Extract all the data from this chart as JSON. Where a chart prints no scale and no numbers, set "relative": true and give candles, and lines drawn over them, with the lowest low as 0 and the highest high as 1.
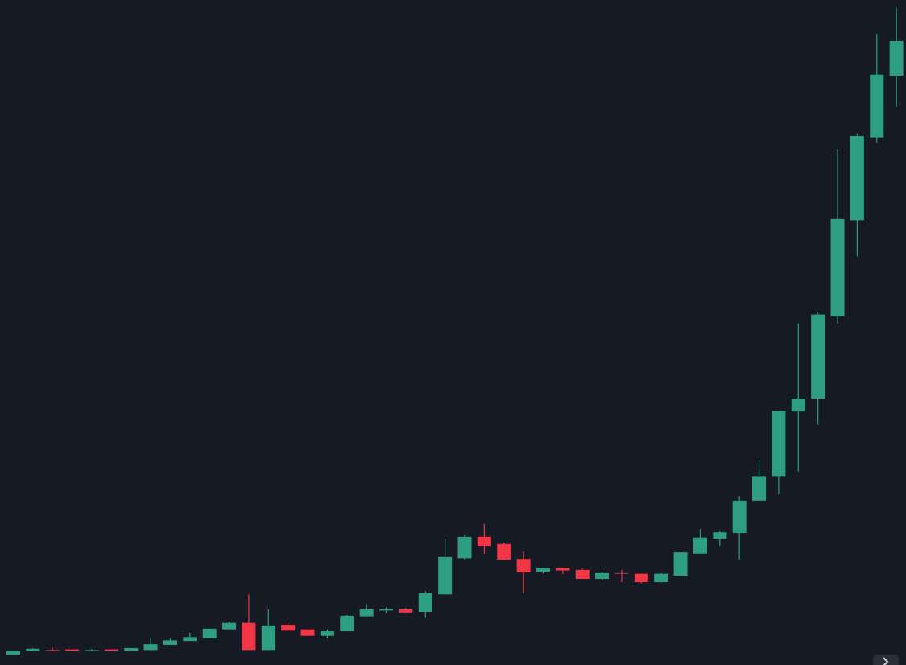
{
  "chart_data": {
    "type": "candlestick",
    "relative": true,
    "categories": [
      null,
      null,
      null,
      null,
      null,
      null,
      null,
      null,
      null,
      null,
      null,
      null,
      null,
      null,
      null,
      null,
      null,
      null,
      null,
      null,
      null,
      null,
      null,
      null,
      null,
      null,
      null,
      null,
      null,
      null,
      null,
      null,
      null,
      null,
      null,
      null,
      null,
      null,
      null,
      null,
      null,
      null,
      null,
      null,
      null,
      null
    ],
    "ohlc": [
      [
        0,
        0.006,
        0,
        0.006
      ],
      [
        0.006,
        0.01,
        0.006,
        0.009
      ],
      [
        0.007,
        0.01,
        0.006,
        0.006
      ],
      [
        0.008,
        0.008,
        0.006,
        0.006
      ],
      [
        0.006,
        0.009,
        0.006,
        0.007
      ],
      [
        0.008,
        0.008,
        0.006,
        0.006
      ],
      [
        0.006,
        0.01,
        0.006,
        0.01
      ],
      [
        0.007,
        0.026,
        0.007,
        0.016
      ],
      [
        0.015,
        0.025,
        0.015,
        0.022
      ],
      [
        0.021,
        0.034,
        0.021,
        0.027
      ],
      [
        0.025,
        0.04,
        0.025,
        0.04
      ],
      [
        0.039,
        0.051,
        0.039,
        0.049
      ],
      [
        0.049,
        0.093,
        0.007,
        0.007
      ],
      [
        0.007,
        0.07,
        0.007,
        0.045
      ],
      [
        0.046,
        0.05,
        0.037,
        0.037
      ],
      [
        0.039,
        0.039,
        0.029,
        0.029
      ],
      [
        0.029,
        0.039,
        0.025,
        0.036
      ],
      [
        0.036,
        0.061,
        0.036,
        0.06
      ],
      [
        0.059,
        0.078,
        0.059,
        0.07
      ],
      [
        0.068,
        0.073,
        0.064,
        0.07
      ],
      [
        0.07,
        0.072,
        0.064,
        0.065
      ],
      [
        0.066,
        0.098,
        0.057,
        0.095
      ],
      [
        0.093,
        0.179,
        0.093,
        0.151
      ],
      [
        0.149,
        0.186,
        0.146,
        0.182
      ],
      [
        0.182,
        0.202,
        0.156,
        0.168
      ],
      [
        0.171,
        0.173,
        0.146,
        0.147
      ],
      [
        0.148,
        0.159,
        0.095,
        0.127
      ],
      [
        0.128,
        0.134,
        0.125,
        0.134
      ],
      [
        0.134,
        0.134,
        0.125,
        0.13
      ],
      [
        0.131,
        0.133,
        0.117,
        0.117
      ],
      [
        0.117,
        0.128,
        0.115,
        0.126
      ],
      [
        0.126,
        0.131,
        0.112,
        0.125
      ],
      [
        0.125,
        0.125,
        0.11,
        0.112
      ],
      [
        0.112,
        0.126,
        0.111,
        0.125
      ],
      [
        0.122,
        0.158,
        0.122,
        0.158
      ],
      [
        0.156,
        0.194,
        0.156,
        0.181
      ],
      [
        0.179,
        0.192,
        0.168,
        0.189
      ],
      [
        0.188,
        0.245,
        0.147,
        0.238
      ],
      [
        0.238,
        0.301,
        0.238,
        0.276
      ],
      [
        0.276,
        0.377,
        0.248,
        0.377
      ],
      [
        0.376,
        0.512,
        0.283,
        0.396
      ],
      [
        0.396,
        0.529,
        0.356,
        0.526
      ],
      [
        0.523,
        0.782,
        0.512,
        0.674
      ],
      [
        0.672,
        0.806,
        0.616,
        0.802
      ],
      [
        0.8,
        0.96,
        0.791,
        0.897
      ],
      [
        0.895,
        1,
        0.847,
        0.949
      ]
    ],
    "colors": [
      "#2e9e83",
      "#2e9e83",
      "#f23645",
      "#f23645",
      "#2e9e83",
      "#f23645",
      "#2e9e83",
      "#2e9e83",
      "#2e9e83",
      "#2e9e83",
      "#2e9e83",
      "#2e9e83",
      "#f23645",
      "#2e9e83",
      "#f23645",
      "#f23645",
      "#2e9e83",
      "#2e9e83",
      "#2e9e83",
      "#2e9e83",
      "#f23645",
      "#2e9e83",
      "#2e9e83",
      "#2e9e83",
      "#f23645",
      "#f23645",
      "#f23645",
      "#2e9e83",
      "#f23645",
      "#f23645",
      "#2e9e83",
      "#f23645",
      "#f23645",
      "#2e9e83",
      "#2e9e83",
      "#2e9e83",
      "#2e9e83",
      "#2e9e83",
      "#2e9e83",
      "#2e9e83",
      "#2e9e83",
      "#2e9e83",
      "#2e9e83",
      "#2e9e83",
      "#2e9e83",
      "#2e9e83"
    ]
  }
}
